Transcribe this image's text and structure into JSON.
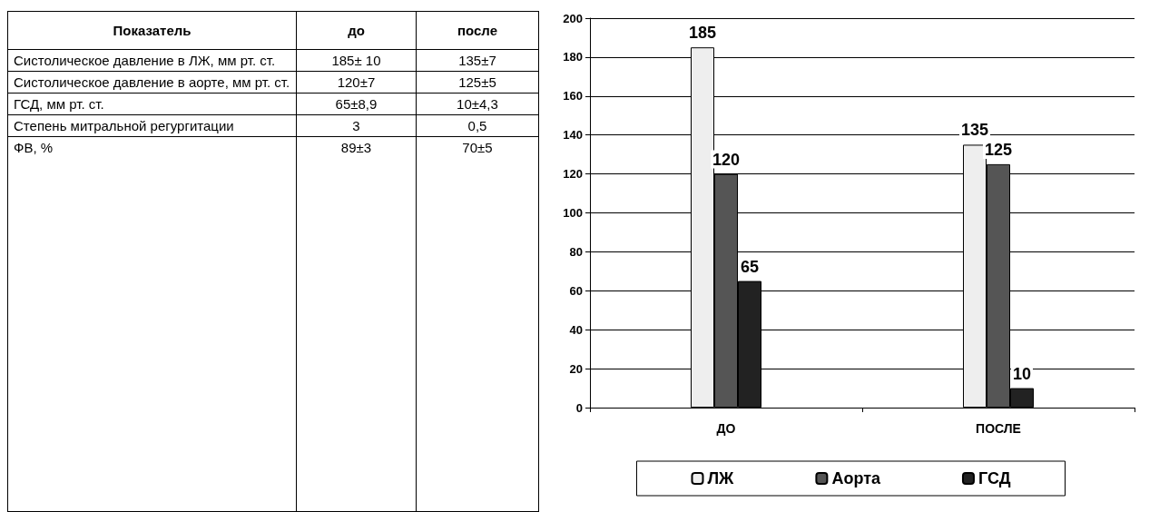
{
  "chart_data": [
    {
      "type": "other",
      "annotations": [
        "Показатель",
        "до",
        "после",
        "Систолическое давление в ЛЖ, мм рт. ст.",
        "185± 10",
        "135±7",
        "Систолическое давление в аорте, мм рт. ст.",
        "120±7",
        "125±5",
        "ГСД, мм рт. ст.",
        "65±8,9",
        "10±4,3",
        "Степень митральной регургитации",
        "3",
        "0,5",
        "ФВ, %",
        "89±3",
        "70±5"
      ]
    },
    {
      "type": "bar",
      "categories": [
        "ДО",
        "ПОСЛЕ"
      ],
      "series": [
        {
          "name": "ЛЖ",
          "color": "#eeeeee",
          "values": [
            185,
            135
          ]
        },
        {
          "name": "Аорта",
          "color": "#555555",
          "values": [
            120,
            125
          ]
        },
        {
          "name": "ГСД",
          "color": "#222222",
          "values": [
            65,
            10
          ]
        }
      ],
      "ylim": [
        0,
        200
      ],
      "yticks": [
        0,
        20,
        40,
        60,
        80,
        100,
        120,
        140,
        160,
        180,
        200
      ],
      "grid": "y",
      "legend": "bottom",
      "data_labels": true
    }
  ]
}
